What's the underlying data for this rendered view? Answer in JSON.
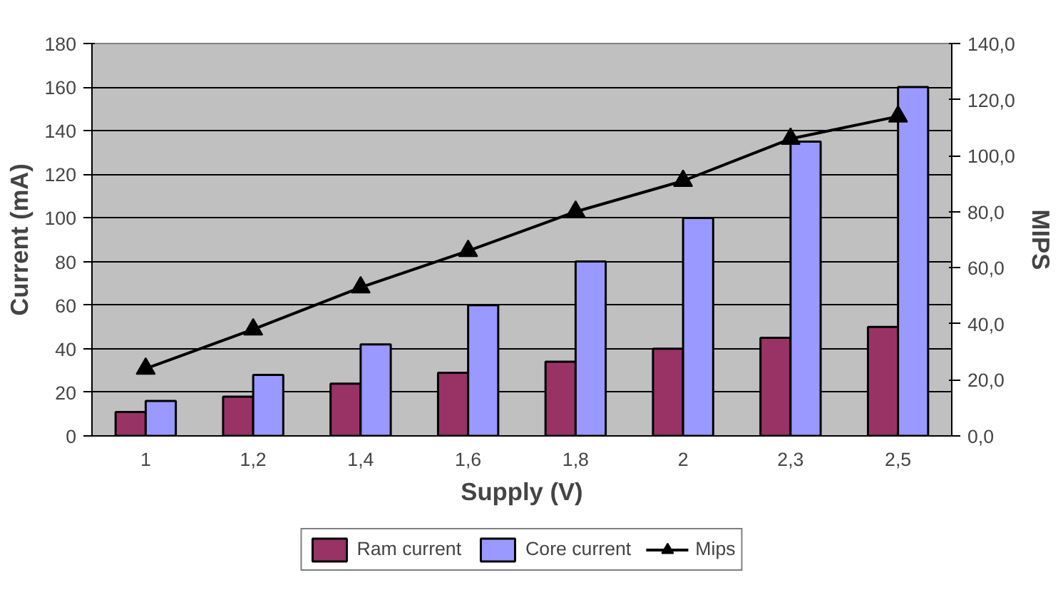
{
  "chart_data": {
    "type": "bar",
    "xlabel": "Supply (V)",
    "ylabel": "Current (mA)",
    "y2label": "MIPS",
    "categories": [
      "1",
      "1,2",
      "1,4",
      "1,6",
      "1,8",
      "2",
      "2,3",
      "2,5"
    ],
    "series": [
      {
        "name": "Ram current",
        "color": "#993366",
        "values": [
          11,
          18,
          24,
          29,
          34,
          40,
          45,
          50
        ]
      },
      {
        "name": "Core current",
        "color": "#9999ff",
        "values": [
          16,
          28,
          42,
          60,
          80,
          100,
          135,
          160
        ]
      },
      {
        "name": "Mips",
        "type": "line",
        "axis": "y2",
        "color": "#000000",
        "marker": "triangle",
        "values": [
          24,
          38,
          53,
          66,
          80,
          91,
          106,
          114
        ]
      }
    ],
    "ylim": [
      0,
      180
    ],
    "yticks": [
      0,
      20,
      40,
      60,
      80,
      100,
      120,
      140,
      160,
      180
    ],
    "y2lim": [
      0,
      140
    ],
    "y2ticks": [
      {
        "value": 0,
        "label": "0,0"
      },
      {
        "value": 20,
        "label": "20,0"
      },
      {
        "value": 40,
        "label": "40,0"
      },
      {
        "value": 60,
        "label": "60,0"
      },
      {
        "value": 80,
        "label": "80,0"
      },
      {
        "value": 100,
        "label": "100,0"
      },
      {
        "value": 120,
        "label": "120,0"
      },
      {
        "value": 140,
        "label": "140,0"
      }
    ],
    "grid": "y",
    "legend": "bottom"
  }
}
